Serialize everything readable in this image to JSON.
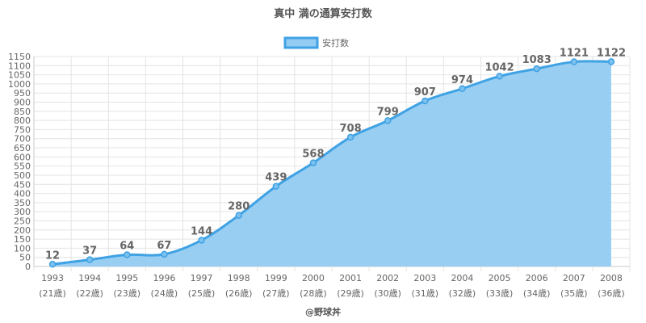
{
  "chart_data": {
    "type": "area",
    "title": "真中 満の通算安打数",
    "series": [
      {
        "name": "安打数",
        "values": [
          12,
          37,
          64,
          67,
          144,
          280,
          439,
          568,
          708,
          799,
          907,
          974,
          1042,
          1083,
          1121,
          1122
        ]
      }
    ],
    "categories": [
      "1993",
      "1994",
      "1995",
      "1996",
      "1997",
      "1998",
      "1999",
      "2000",
      "2001",
      "2002",
      "2003",
      "2004",
      "2005",
      "2006",
      "2007",
      "2008"
    ],
    "age_labels": [
      "(21歳)",
      "(22歳)",
      "(23歳)",
      "(24歳)",
      "(25歳)",
      "(26歳)",
      "(27歳)",
      "(28歳)",
      "(29歳)",
      "(30歳)",
      "(31歳)",
      "(32歳)",
      "(33歳)",
      "(34歳)",
      "(35歳)",
      "(36歳)"
    ],
    "ylim": [
      0,
      1150
    ],
    "ytick_step": 50,
    "grid": true,
    "legend_position": "top-center",
    "colors": {
      "line": "#3fa2e4",
      "fill": "#94cbf2",
      "point_fill": "#7cc0ee",
      "grid": "#e4e4e4",
      "axis": "#c8c8c8"
    },
    "credit": "@野球丼"
  }
}
